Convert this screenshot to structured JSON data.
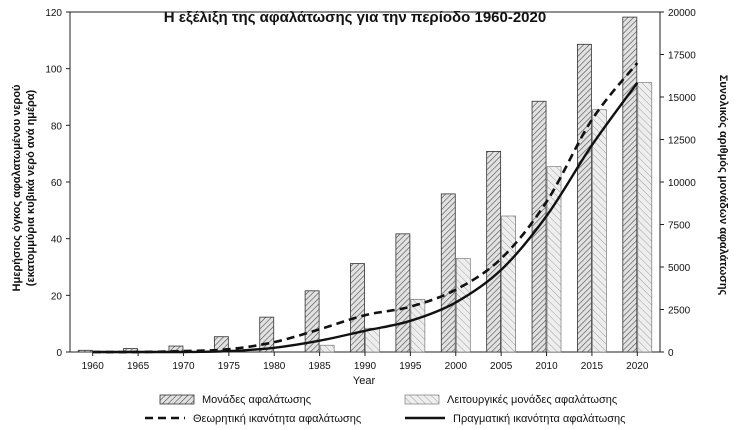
{
  "chart_data": {
    "type": "bar",
    "title": "Η εξέλιξη της αφαλάτωσης για την περίοδο 1960-2020",
    "xlabel": "Year",
    "ylabel_left_line1": "Ημερήσιος όγκος αφαλατωμένου νερού",
    "ylabel_left_line2": "(εκατομμύρια κυβικά νερό ανά ημέρα)",
    "ylabel_right": "Συνολικός αριθμός μονάδων αφαλάτωσης",
    "ylim_left": [
      0,
      120
    ],
    "ylim_right": [
      0,
      20000
    ],
    "left_ticks": [
      "0",
      "20",
      "40",
      "60",
      "80",
      "100",
      "120"
    ],
    "right_ticks": [
      "0",
      "2500",
      "5000",
      "7500",
      "10000",
      "12500",
      "15000",
      "17500",
      "20000"
    ],
    "categories": [
      "1960",
      "1965",
      "1970",
      "1975",
      "1980",
      "1985",
      "1990",
      "1995",
      "2000",
      "2005",
      "2010",
      "2015",
      "2020"
    ],
    "series": [
      {
        "name": "Μονάδες αφαλάτωσης",
        "kind": "bar",
        "axis": "right",
        "values": [
          100,
          200,
          350,
          900,
          2050,
          3600,
          5200,
          6950,
          9300,
          11800,
          14750,
          18100,
          19700
        ]
      },
      {
        "name": "Λειτουργικές μονάδες αφαλάτωσης",
        "kind": "bar",
        "axis": "right",
        "values": [
          0,
          0,
          0,
          0,
          0,
          400,
          1400,
          3100,
          5500,
          8000,
          10900,
          14250,
          15850
        ]
      },
      {
        "name": "Θεωρητική ικανότητα αφαλάτωσης",
        "kind": "line",
        "style": "dashed",
        "axis": "left",
        "x": [
          1960,
          1965,
          1970,
          1975,
          1980,
          1985,
          1990,
          1995,
          2000,
          2005,
          2010,
          2015,
          2020
        ],
        "values": [
          0,
          0,
          0.3,
          1,
          3.5,
          8,
          13,
          16,
          22,
          33,
          53,
          82,
          102
        ]
      },
      {
        "name": "Πραγματική ικανότητα αφαλάτωσης",
        "kind": "line",
        "style": "solid",
        "axis": "left",
        "x": [
          1960,
          1965,
          1970,
          1975,
          1980,
          1985,
          1990,
          1995,
          2000,
          2005,
          2010,
          2015,
          2020
        ],
        "values": [
          0,
          0,
          0,
          0.3,
          1.5,
          4,
          7.5,
          11,
          17.5,
          29,
          48,
          73,
          95
        ]
      }
    ],
    "legend_position": "bottom",
    "colors": {
      "bar_edge": "#333333",
      "bar_fill_light": "#e6e6e6",
      "line": "#111111"
    }
  }
}
